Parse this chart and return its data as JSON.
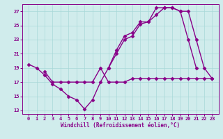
{
  "xlabel": "Windchill (Refroidissement éolien,°C)",
  "x_values": [
    0,
    1,
    2,
    3,
    4,
    5,
    6,
    7,
    8,
    9,
    10,
    11,
    12,
    13,
    14,
    15,
    16,
    17,
    18,
    19,
    20,
    21,
    22,
    23
  ],
  "line1": [
    19.5,
    19.0,
    18.0,
    16.7,
    16.0,
    15.0,
    14.5,
    13.2,
    14.5,
    17.0,
    19.0,
    21.0,
    23.0,
    23.5,
    25.2,
    25.5,
    27.5,
    27.5,
    27.5,
    27.0,
    23.0,
    19.0,
    null,
    null
  ],
  "line2": [
    null,
    null,
    18.5,
    17.0,
    17.0,
    17.0,
    17.0,
    17.0,
    17.0,
    19.0,
    17.0,
    17.0,
    17.0,
    17.5,
    17.5,
    17.5,
    17.5,
    17.5,
    17.5,
    17.5,
    17.5,
    17.5,
    17.5,
    17.5
  ],
  "line3": [
    null,
    null,
    null,
    null,
    null,
    null,
    null,
    null,
    null,
    null,
    19.0,
    21.5,
    23.5,
    24.0,
    25.5,
    25.5,
    26.5,
    27.5,
    27.5,
    27.0,
    27.0,
    23.0,
    19.0,
    17.5
  ],
  "line_color": "#880088",
  "bg_color": "#d0ecec",
  "grid_color": "#a8d8d8",
  "ylim": [
    12.5,
    28.0
  ],
  "yticks": [
    13,
    15,
    17,
    19,
    21,
    23,
    25,
    27
  ],
  "xticks": [
    0,
    1,
    2,
    3,
    4,
    5,
    6,
    7,
    8,
    9,
    10,
    11,
    12,
    13,
    14,
    15,
    16,
    17,
    18,
    19,
    20,
    21,
    22,
    23
  ],
  "marker": "D",
  "markersize": 2.5,
  "linewidth": 1.0
}
